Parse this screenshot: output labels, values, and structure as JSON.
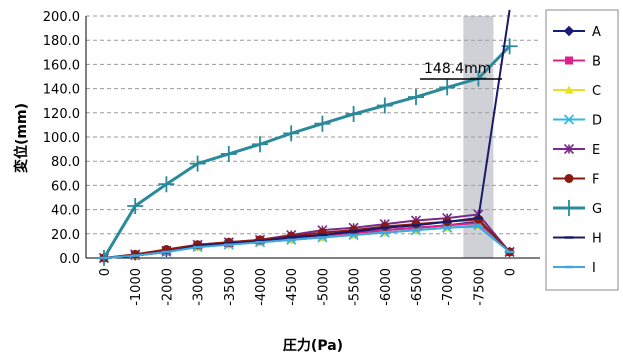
{
  "chart_data": {
    "type": "line",
    "xlabel": "圧力(Pa)",
    "ylabel": "変位(mm)",
    "categories": [
      "0",
      "-1000",
      "-2000",
      "-3000",
      "-3500",
      "-4000",
      "-4500",
      "-5000",
      "-5500",
      "-6000",
      "-6500",
      "-7000",
      "-7500",
      "0"
    ],
    "ylim": [
      0,
      200
    ],
    "yticks": [
      "0.0",
      "20.0",
      "40.0",
      "60.0",
      "80.0",
      "100.0",
      "120.0",
      "140.0",
      "160.0",
      "180.0",
      "200.0"
    ],
    "grid": "horizontal dashed",
    "legend_position": "right",
    "annotation": {
      "text": "148.4mm",
      "value": 148.4
    },
    "highlight_band": {
      "category": "-7500"
    },
    "series": [
      {
        "name": "A",
        "color": "#1a1a7a",
        "marker": "diamond",
        "values": [
          0,
          2,
          5,
          10,
          12,
          14,
          16,
          18,
          21,
          23,
          25,
          27,
          30,
          5
        ]
      },
      {
        "name": "B",
        "color": "#e0208a",
        "marker": "square",
        "values": [
          0,
          2,
          5,
          10,
          12,
          14,
          16,
          18,
          20,
          23,
          25,
          27,
          29,
          5
        ]
      },
      {
        "name": "C",
        "color": "#e8e020",
        "marker": "triangle",
        "values": [
          0,
          2,
          5,
          9,
          11,
          13,
          15,
          17,
          19,
          21,
          23,
          25,
          27,
          5
        ]
      },
      {
        "name": "D",
        "color": "#30b8e0",
        "marker": "x",
        "values": [
          0,
          2,
          5,
          9,
          11,
          13,
          15,
          17,
          19,
          21,
          23,
          25,
          27,
          5
        ]
      },
      {
        "name": "E",
        "color": "#7a2a8a",
        "marker": "star",
        "values": [
          0,
          3,
          6,
          11,
          13,
          15,
          19,
          23,
          25,
          28,
          31,
          33,
          36,
          5
        ]
      },
      {
        "name": "F",
        "color": "#8a1a10",
        "marker": "circle",
        "values": [
          0,
          3,
          7,
          11,
          13,
          15,
          18,
          21,
          23,
          26,
          28,
          30,
          32,
          5
        ]
      },
      {
        "name": "G",
        "color": "#2a8a9a",
        "marker": "plus",
        "values": [
          0,
          43,
          61,
          78,
          86,
          94,
          103,
          111,
          119,
          126,
          133,
          141,
          148.4,
          175
        ]
      },
      {
        "name": "H",
        "color": "#1a1a6a",
        "marker": "dash",
        "values": [
          0,
          2,
          5,
          10,
          12,
          14,
          17,
          19,
          22,
          25,
          27,
          30,
          33,
          205
        ]
      },
      {
        "name": "I",
        "color": "#40a8e0",
        "marker": "dash",
        "values": [
          0,
          2,
          5,
          9,
          11,
          13,
          15,
          17,
          19,
          21,
          23,
          25,
          26,
          5
        ]
      }
    ]
  }
}
